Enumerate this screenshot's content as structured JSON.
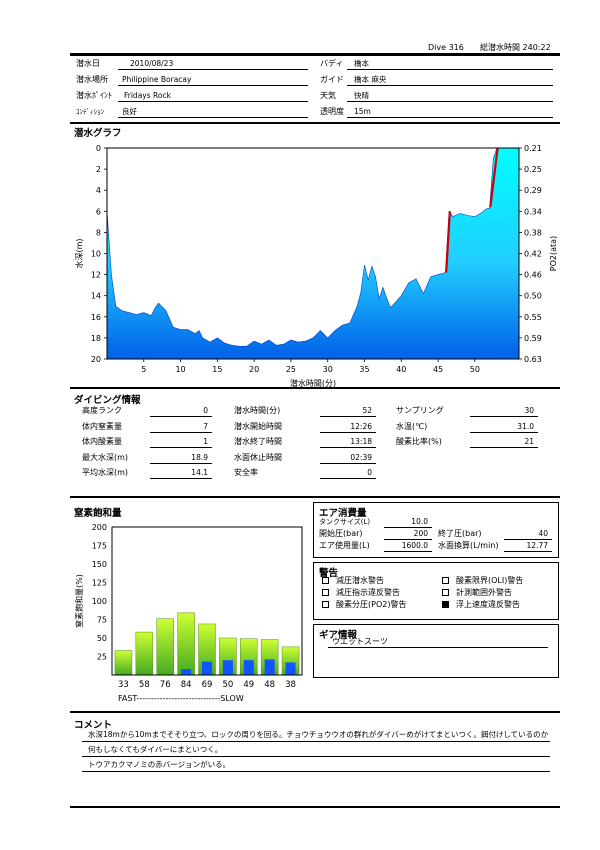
{
  "header": {
    "dive_no": "Dive 316",
    "total_time": "総潜水時間 240:22"
  },
  "info": {
    "date_label": "潜水日",
    "date": "2010/08/23",
    "place_label": "潜水場所",
    "place": "Philippine Boracay",
    "point_label": "潜水ﾎﾟｲﾝﾄ",
    "point": "Fridays  Rock",
    "condition_label": "ｺﾝﾃﾞｨｼｮﾝ",
    "condition": "良好",
    "buddy_label": "バディ",
    "buddy": "橋本",
    "guide_label": "ガイド",
    "guide": "橋本 麻央",
    "weather_label": "天気",
    "weather": "快晴",
    "visibility_label": "透明度",
    "visibility": "15m"
  },
  "graph": {
    "title": "潜水グラフ",
    "y_label": "水深(m)",
    "y2_label": "PO2(ata)",
    "x_label": "潜水時間(分)",
    "y_ticks": [
      "0",
      "2",
      "4",
      "6",
      "8",
      "10",
      "12",
      "14",
      "16",
      "18",
      "20"
    ],
    "y2_ticks": [
      "0.21",
      "0.25",
      "0.29",
      "0.34",
      "0.38",
      "0.42",
      "0.46",
      "0.50",
      "0.55",
      "0.59",
      "0.63"
    ],
    "x_ticks": [
      "5",
      "10",
      "15",
      "20",
      "25",
      "30",
      "35",
      "40",
      "45",
      "50"
    ]
  },
  "chart_data": [
    {
      "type": "area",
      "title": "潜水グラフ",
      "xlabel": "潜水時間(分)",
      "ylabel": "水深(m)",
      "y2label": "PO2(ata)",
      "xlim": [
        0,
        56
      ],
      "ylim": [
        20,
        0
      ],
      "y2lim": [
        0.63,
        0.21
      ],
      "series": [
        {
          "x": [
            0,
            0.6,
            1.2,
            2,
            3,
            4,
            5,
            6,
            6.5,
            7,
            8,
            9,
            10,
            11,
            12,
            12.5,
            13,
            14,
            15,
            16,
            17,
            18,
            19,
            20,
            21,
            22,
            23,
            24,
            25,
            26,
            27,
            28,
            29,
            30,
            31,
            32,
            33,
            34,
            34.5,
            35,
            35.5,
            36,
            36.5,
            37,
            37.5,
            38,
            38.5,
            39,
            40,
            41,
            42,
            43,
            44,
            45,
            46,
            46.5,
            47,
            48,
            49,
            50,
            51,
            51.5,
            52,
            52.5,
            53,
            53.5,
            54,
            55,
            56
          ],
          "y": [
            6,
            12,
            15,
            15.4,
            15.6,
            15.8,
            15.6,
            15.9,
            15.2,
            14.7,
            15.4,
            17,
            17.2,
            17.2,
            17.6,
            17.3,
            18,
            18.4,
            18,
            18.5,
            18.7,
            18.8,
            18.8,
            18.3,
            18.6,
            18.2,
            18.7,
            18.6,
            18.2,
            18.4,
            18.3,
            18,
            17.3,
            18,
            17.3,
            16.8,
            16.6,
            15,
            13.7,
            11.1,
            12.5,
            11.2,
            12.2,
            14.3,
            13.2,
            14.2,
            15.1,
            14.8,
            14,
            12.8,
            12.4,
            13.8,
            12.2,
            12,
            11.8,
            6,
            6.5,
            6.2,
            6.4,
            6.5,
            6.1,
            5.8,
            5.7,
            1,
            0,
            0,
            0,
            0,
            0
          ]
        }
      ]
    },
    {
      "type": "bar",
      "title": "窒素飽和量",
      "ylabel": "窒素飽和量(%)",
      "categories": [
        "33",
        "58",
        "76",
        "84",
        "69",
        "50",
        "49",
        "48",
        "38"
      ],
      "ylim": [
        0,
        200
      ],
      "series": [
        {
          "name": "",
          "values": [
            33,
            58,
            76,
            84,
            69,
            50,
            49,
            48,
            38
          ]
        },
        {
          "name": "",
          "values": [
            0,
            0,
            0,
            8,
            18,
            20,
            20,
            21,
            17
          ]
        }
      ],
      "x_left_label": "FAST",
      "x_right_label": "SLOW"
    }
  ],
  "nitrogen": {
    "title": "窒素飽和量",
    "y_label": "窒素飽和量(%)",
    "y_ticks": [
      "200",
      "175",
      "150",
      "125",
      "100",
      "75",
      "50",
      "25"
    ],
    "axis_caption": "FAST-----------------------------SLOW"
  },
  "diving_info": {
    "title": "ダイビング情報",
    "rows_left": [
      {
        "label": "高度ランク",
        "value": "0"
      },
      {
        "label": "体内窒素量",
        "value": "7"
      },
      {
        "label": "体内酸素量",
        "value": "1"
      },
      {
        "label": "最大水深(m)",
        "value": "18.9"
      },
      {
        "label": "平均水深(m)",
        "value": "14.1"
      }
    ],
    "rows_mid": [
      {
        "label": "潜水時間(分)",
        "value": "52"
      },
      {
        "label": "潜水開始時間",
        "value": "12:26"
      },
      {
        "label": "潜水終了時間",
        "value": "13:18"
      },
      {
        "label": "水面休止時間",
        "value": "02:39"
      },
      {
        "label": "安全率",
        "value": "0"
      }
    ],
    "rows_right": [
      {
        "label": "サンプリング",
        "value": "30"
      },
      {
        "label": "水温(℃)",
        "value": "31.0"
      },
      {
        "label": "酸素比率(%)",
        "value": "21"
      }
    ]
  },
  "air": {
    "title": "エア消費量",
    "tank_label": "タンクサイズ(L)",
    "tank": "10.0",
    "start_label": "開始圧(bar)",
    "start": "200",
    "end_label": "終了圧(bar)",
    "end": "40",
    "used_label": "エア使用量(L)",
    "used": "1600.0",
    "sac_label": "水面換算(L/min)",
    "sac": "12.77"
  },
  "warnings": {
    "title": "警告",
    "items": [
      {
        "label": "減圧潜水警告",
        "checked": false
      },
      {
        "label": "減圧指示違反警告",
        "checked": false
      },
      {
        "label": "酸素分圧(PO2)警告",
        "checked": false
      },
      {
        "label": "酸素限界(OLI)警告",
        "checked": false
      },
      {
        "label": "計測範囲外警告",
        "checked": false
      },
      {
        "label": "浮上速度違反警告",
        "checked": true
      }
    ]
  },
  "gear": {
    "title": "ギア情報",
    "item": "ウエットスーツ"
  },
  "comment": {
    "title": "コメント",
    "lines": [
      "水深18mから10mまでそそり立つ、ロックの周りを回る。チョウチョウウオの群れがダイバーめがけてまといつく。餌付けしているのか",
      "何もしなくてもダイバーにまといつく。",
      "トウアカクマノミの赤バージョンがいる。"
    ]
  },
  "colors": {
    "area_top": "#00ffff",
    "area_bottom": "#0070ee",
    "ascent_warn": "#cc0000",
    "bar_green_top": "#ccff33",
    "bar_green_bottom": "#44aa22",
    "bar_blue": "#1155ff"
  }
}
